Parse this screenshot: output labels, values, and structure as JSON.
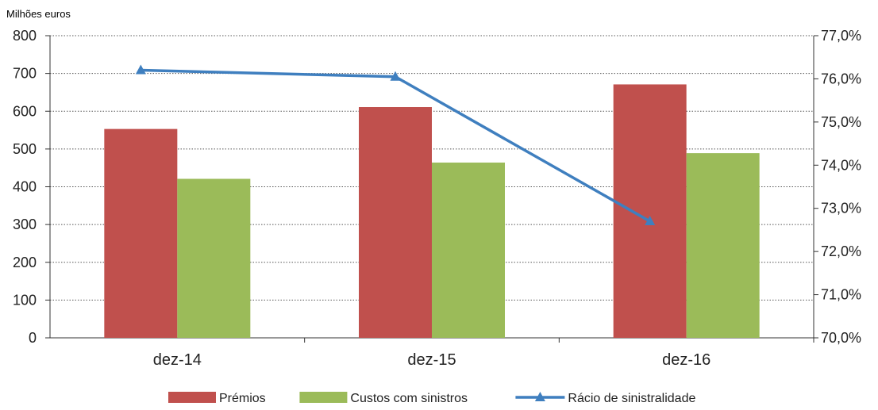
{
  "chart_data": {
    "type": "bar",
    "ylabel": "Milhões euros",
    "categories": [
      "dez-14",
      "dez-15",
      "dez-16"
    ],
    "series": [
      {
        "name": "Prémios",
        "type": "bar",
        "axis": "left",
        "values": [
          553,
          611,
          671
        ],
        "color": "#c0504d"
      },
      {
        "name": "Custos com sinistros",
        "type": "bar",
        "axis": "left",
        "values": [
          421,
          464,
          489
        ],
        "color": "#9bbb59"
      },
      {
        "name": "Rácio de sinistralidade",
        "type": "line",
        "axis": "right",
        "marker": "triangle",
        "values": [
          76.2,
          76.05,
          72.7
        ],
        "color": "#3f7fbf"
      }
    ],
    "y_left": {
      "min": 0,
      "max": 800,
      "step": 100,
      "tick_labels": [
        "0",
        "100",
        "200",
        "300",
        "400",
        "500",
        "600",
        "700",
        "800"
      ]
    },
    "y_right": {
      "min": 70,
      "max": 77,
      "step": 1,
      "tick_labels": [
        "70,0%",
        "71,0%",
        "72,0%",
        "73,0%",
        "74,0%",
        "75,0%",
        "76,0%",
        "77,0%"
      ]
    },
    "grid": "dotted horizontal",
    "legend": "bottom"
  }
}
